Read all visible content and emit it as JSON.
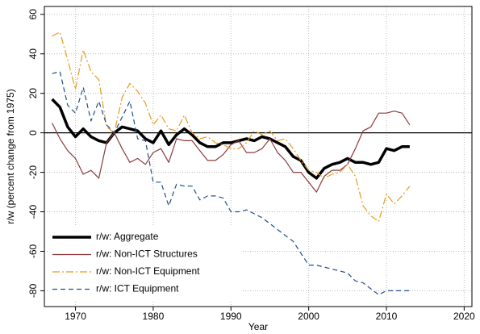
{
  "chart_data": {
    "type": "line",
    "x_label": "Year",
    "y_label": "r/w (percent change from 1975)",
    "x": [
      1967,
      1968,
      1969,
      1970,
      1971,
      1972,
      1973,
      1974,
      1975,
      1976,
      1977,
      1978,
      1979,
      1980,
      1981,
      1982,
      1983,
      1984,
      1985,
      1986,
      1987,
      1988,
      1989,
      1990,
      1991,
      1992,
      1993,
      1994,
      1995,
      1996,
      1997,
      1998,
      1999,
      2000,
      2001,
      2002,
      2003,
      2004,
      2005,
      2006,
      2007,
      2008,
      2009,
      2010,
      2011,
      2012,
      2013
    ],
    "series": [
      {
        "name": "r/w: Aggregate",
        "color": "#000000",
        "line_style": "thick",
        "values": [
          17,
          13,
          3,
          -2,
          2,
          -2,
          -4,
          -5,
          0,
          3,
          2,
          1,
          -3,
          -5,
          1,
          -6,
          -1,
          2,
          -1,
          -5,
          -7,
          -7,
          -5,
          -5,
          -4,
          -3,
          -4,
          -2,
          -3,
          -5,
          -7,
          -12,
          -14,
          -20,
          -23,
          -18,
          -16,
          -15,
          -13,
          -15,
          -15,
          -16,
          -15,
          -8,
          -9,
          -7,
          -7
        ]
      },
      {
        "name": "r/w: Non-ICT Structures",
        "color": "#8c3b3b",
        "line_style": "solid",
        "values": [
          5,
          -3,
          -9,
          -13,
          -21,
          -19,
          -23,
          -5,
          0,
          -8,
          -15,
          -13,
          -16,
          -10,
          -8,
          -15,
          -3,
          -4,
          -4,
          -9,
          -14,
          -14,
          -11,
          -6,
          -4,
          -10,
          -10,
          -8,
          -3,
          -10,
          -14,
          -20,
          -20,
          -25,
          -30,
          -22,
          -19,
          -19,
          -16,
          -8,
          1,
          3,
          10,
          10,
          11,
          10,
          4
        ]
      },
      {
        "name": "r/w: Non-ICT Equipment",
        "color": "#e89a1c",
        "line_style": "dashdot",
        "values": [
          49,
          51,
          37,
          22,
          42,
          31,
          27,
          3,
          0,
          18,
          25,
          21,
          15,
          4,
          9,
          2,
          1,
          9,
          0,
          -3,
          -2,
          -5,
          -6,
          -8,
          -8,
          -5,
          1,
          -1,
          1,
          -4,
          -3,
          -8,
          -14,
          -19,
          -20,
          -23,
          -21,
          -20,
          -16,
          -22,
          -37,
          -42,
          -45,
          -31,
          -36,
          -32,
          -27
        ]
      },
      {
        "name": "r/w: ICT Equipment",
        "color": "#1f4e8c",
        "line_style": "dash",
        "values": [
          30,
          31,
          14,
          10,
          23,
          6,
          16,
          4,
          0,
          8,
          16,
          -3,
          -4,
          -25,
          -25,
          -37,
          -26,
          -27,
          -27,
          -34,
          -32,
          -32,
          -33,
          -40,
          -40,
          -39,
          -41,
          -43,
          -46,
          -49,
          -52,
          -55,
          -61,
          -67,
          -67,
          -68,
          -69,
          -70,
          -71,
          -75,
          -76,
          -79,
          -82,
          -80,
          -80,
          -80,
          -80
        ]
      }
    ],
    "xlim": [
      1966,
      2021
    ],
    "xticks": [
      1970,
      1980,
      1990,
      2000,
      2010,
      2020
    ],
    "ylim": [
      -88,
      64
    ],
    "yticks": [
      -80,
      -60,
      -40,
      -20,
      0,
      20,
      40,
      60
    ],
    "grid": true,
    "zero_line": true,
    "legend": "lower-left"
  }
}
